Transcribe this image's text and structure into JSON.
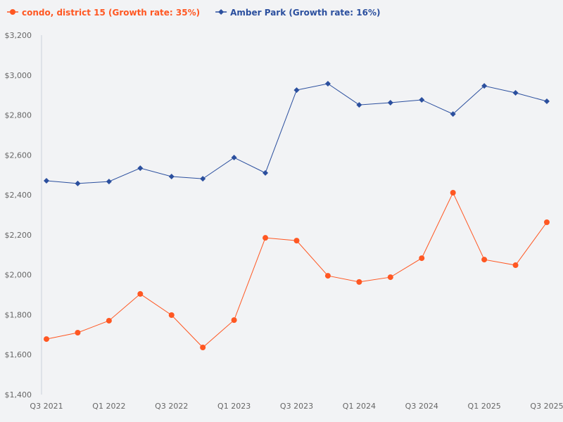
{
  "chart_data": {
    "type": "line",
    "title": "",
    "xlabel": "",
    "ylabel": "",
    "ylim": [
      1400,
      3200
    ],
    "y_ticks": [
      "$1,400",
      "$1,600",
      "$1,800",
      "$2,000",
      "$2,200",
      "$2,400",
      "$2,600",
      "$2,800",
      "$3,000",
      "$3,200"
    ],
    "y_tick_values": [
      1400,
      1600,
      1800,
      2000,
      2200,
      2400,
      2600,
      2800,
      3000,
      3200
    ],
    "x": [
      "Q3 2021",
      "Q4 2021",
      "Q1 2022",
      "Q2 2022",
      "Q3 2022",
      "Q4 2022",
      "Q1 2023",
      "Q2 2023",
      "Q3 2023",
      "Q4 2023",
      "Q1 2024",
      "Q2 2024",
      "Q3 2024",
      "Q4 2024",
      "Q1 2025",
      "Q2 2025",
      "Q3 2025"
    ],
    "x_tick_labels": [
      "Q3 2021",
      "",
      "Q1 2022",
      "",
      "Q3 2022",
      "",
      "Q1 2023",
      "",
      "Q3 2023",
      "",
      "Q1 2024",
      "",
      "Q3 2024",
      "",
      "Q1 2025",
      "",
      "Q3 2025"
    ],
    "grid": false,
    "legend_position": "top-left",
    "series": [
      {
        "name": "condo, district 15 (Growth rate: 35%)",
        "color": "#ff5722",
        "marker": "circle",
        "values": [
          1678,
          1710,
          1770,
          1904,
          1798,
          1636,
          1773,
          2185,
          2171,
          1995,
          1964,
          1988,
          2083,
          2411,
          2076,
          2048,
          2263
        ]
      },
      {
        "name": "Amber Park (Growth rate: 16%)",
        "color": "#2b4f9e",
        "marker": "diamond",
        "values": [
          2471,
          2457,
          2467,
          2534,
          2492,
          2481,
          2587,
          2510,
          2925,
          2957,
          2851,
          2862,
          2876,
          2805,
          2946,
          2911,
          2869
        ]
      }
    ]
  }
}
